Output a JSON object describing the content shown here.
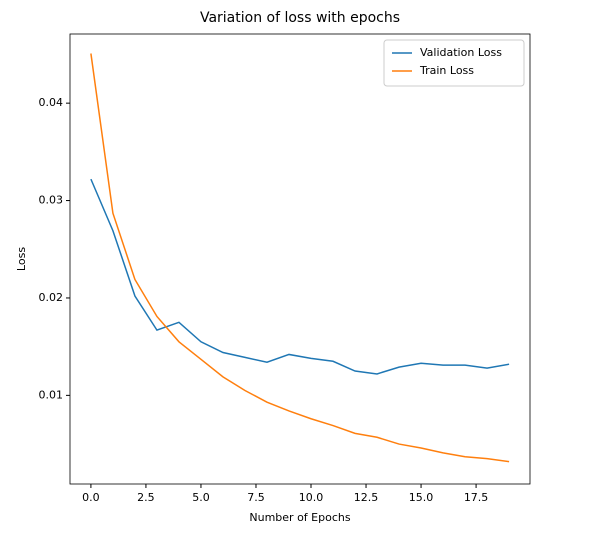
{
  "chart_data": {
    "type": "line",
    "title": "Variation of loss with epochs",
    "xlabel": "Number of Epochs",
    "ylabel": "Loss",
    "x": [
      0,
      1,
      2,
      3,
      4,
      5,
      6,
      7,
      8,
      9,
      10,
      11,
      12,
      13,
      14,
      15,
      16,
      17,
      18,
      19
    ],
    "series": [
      {
        "name": "Validation Loss",
        "color": "#1f77b4",
        "values": [
          0.0322,
          0.0269,
          0.0202,
          0.0167,
          0.0175,
          0.0155,
          0.0144,
          0.0139,
          0.0134,
          0.0142,
          0.0138,
          0.0135,
          0.0125,
          0.0122,
          0.0129,
          0.0133,
          0.0131,
          0.0131,
          0.0128,
          0.0132
        ]
      },
      {
        "name": "Train Loss",
        "color": "#ff7f0e",
        "values": [
          0.0451,
          0.0287,
          0.0219,
          0.0181,
          0.0155,
          0.0137,
          0.0119,
          0.0105,
          0.0093,
          0.0084,
          0.0076,
          0.0069,
          0.0061,
          0.0057,
          0.005,
          0.0046,
          0.0041,
          0.0037,
          0.0035,
          0.0032
        ]
      }
    ],
    "xlim": [
      -0.95,
      19.95
    ],
    "xticks": [
      {
        "value": 0,
        "label": "0.0"
      },
      {
        "value": 2.5,
        "label": "2.5"
      },
      {
        "value": 5,
        "label": "5.0"
      },
      {
        "value": 7.5,
        "label": "7.5"
      },
      {
        "value": 10,
        "label": "10.0"
      },
      {
        "value": 12.5,
        "label": "12.5"
      },
      {
        "value": 15,
        "label": "15.0"
      },
      {
        "value": 17.5,
        "label": "17.5"
      }
    ],
    "ylim": [
      0.0009,
      0.0471
    ],
    "yticks": [
      0.01,
      0.02,
      0.03,
      0.04
    ],
    "legend": "upper right"
  }
}
